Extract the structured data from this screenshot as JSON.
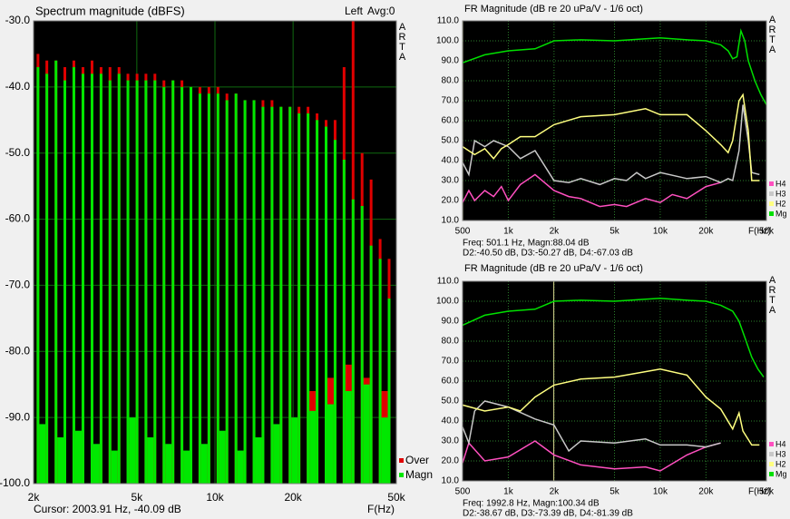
{
  "chart_data": [
    {
      "type": "bar",
      "title": "Spectrum magnitude (dBFS)",
      "channel": "Left",
      "average": "Avg:0",
      "brand": "ARTA",
      "x_label": "F(Hz)",
      "status": [
        "Cursor: 2003.91 Hz, -40.09 dB"
      ],
      "xscale": "log",
      "grid": true,
      "xlim": [
        2000,
        50000
      ],
      "xticks": [
        {
          "value": 2000,
          "label": "2k"
        },
        {
          "value": 5000,
          "label": "5k"
        },
        {
          "value": 10000,
          "label": "10k"
        },
        {
          "value": 20000,
          "label": "20k"
        },
        {
          "value": 50000,
          "label": "50k"
        }
      ],
      "ylim": [
        -100,
        -30
      ],
      "yticks": [
        {
          "value": -100,
          "label": "-100.0"
        },
        {
          "value": -90,
          "label": "-90.0"
        },
        {
          "value": -80,
          "label": "-80.0"
        },
        {
          "value": -70,
          "label": "-70.0"
        },
        {
          "value": -60,
          "label": "-60.0"
        },
        {
          "value": -50,
          "label": "-50.0"
        },
        {
          "value": -40,
          "label": "-40.0"
        },
        {
          "value": -30,
          "label": "-30.0"
        }
      ],
      "series": [
        {
          "name": "Over",
          "color": "#e00000",
          "x": [
            2080,
            2250,
            2440,
            2640,
            2860,
            3100,
            3360,
            3640,
            3940,
            4270,
            4620,
            5010,
            5420,
            5870,
            6360,
            6890,
            7460,
            8080,
            8750,
            9480,
            10270,
            11120,
            12050,
            13050,
            14140,
            15310,
            16590,
            17970,
            19460,
            21080,
            22840,
            24740,
            26800,
            29030,
            31440,
            34060,
            36890,
            39960,
            43290,
            46890
          ],
          "values": [
            -35,
            -36,
            -36,
            -37,
            -36,
            -37,
            -36,
            -37,
            -37,
            -37,
            -38,
            -38,
            -38,
            -38,
            -39,
            -39,
            -39,
            -40,
            -40,
            -40,
            -40,
            -41,
            -41,
            -42,
            -42,
            -42,
            -42,
            -43,
            -43,
            -43,
            -43,
            -44,
            -45,
            -45,
            -37,
            -30,
            -50,
            -54,
            -63,
            -66
          ],
          "noise_x": [
            2160,
            2540,
            2980,
            3500,
            4110,
            4830,
            5650,
            6630,
            7770,
            9110,
            10680,
            12530,
            14700,
            17240,
            20220,
            23720,
            27820,
            32630,
            38280,
            44900
          ],
          "noise_values": [
            -95,
            -96,
            -95,
            -96,
            -97,
            -94,
            -96,
            -96,
            -97,
            -96,
            -94,
            -96,
            -95,
            -93,
            -91,
            -86,
            -84,
            -82,
            -84,
            -86
          ]
        },
        {
          "name": "Magn",
          "color": "#00e800",
          "x": [
            2080,
            2250,
            2440,
            2640,
            2860,
            3100,
            3360,
            3640,
            3940,
            4270,
            4620,
            5010,
            5420,
            5870,
            6360,
            6890,
            7460,
            8080,
            8750,
            9480,
            10270,
            11120,
            12050,
            13050,
            14140,
            15310,
            16590,
            17970,
            19460,
            21080,
            22840,
            24740,
            26800,
            29030,
            31440,
            34060,
            36890,
            39960,
            43290,
            46890
          ],
          "values": [
            -37,
            -38,
            -36,
            -39,
            -37,
            -38,
            -38,
            -38,
            -39,
            -38,
            -39,
            -39,
            -39,
            -39,
            -40,
            -39,
            -40,
            -40,
            -41,
            -41,
            -41,
            -42,
            -41,
            -42,
            -42,
            -43,
            -43,
            -43,
            -43,
            -44,
            -44,
            -45,
            -46,
            -48,
            -51,
            -57,
            -58,
            -64,
            -66,
            -72
          ],
          "noise_x": [
            2160,
            2540,
            2980,
            3500,
            4110,
            4830,
            5650,
            6630,
            7770,
            9110,
            10680,
            12530,
            14700,
            17240,
            20220,
            23720,
            27820,
            32630,
            38280,
            44900
          ],
          "noise_values": [
            -91,
            -93,
            -92,
            -94,
            -95,
            -90,
            -93,
            -94,
            -95,
            -94,
            -92,
            -95,
            -93,
            -91,
            -90,
            -89,
            -88,
            -86,
            -85,
            -90
          ]
        }
      ]
    },
    {
      "type": "line",
      "title": "FR Magnitude (dB re 20 uPa/V - 1/6 oct)",
      "brand": "ARTA",
      "x_label": "F(Hz)",
      "status": [
        "Freq: 501.1 Hz, Magn:88.04 dB",
        "D2:-40.50 dB, D3:-50.27 dB, D4:-67.03 dB"
      ],
      "cursor_freq": 501.1,
      "xscale": "log",
      "grid": true,
      "xlim": [
        500,
        50000
      ],
      "xticks": [
        500,
        {
          "value": 1000,
          "label": "1k"
        },
        {
          "value": 2000,
          "label": "2k"
        },
        {
          "value": 5000,
          "label": "5k"
        },
        {
          "value": 10000,
          "label": "10k"
        },
        {
          "value": 20000,
          "label": "20k"
        },
        {
          "value": 50000,
          "label": "50k"
        }
      ],
      "ylim": [
        10,
        110
      ],
      "yticks": [
        {
          "value": 10,
          "label": "10.0"
        },
        {
          "value": 20,
          "label": "20.0"
        },
        {
          "value": 30,
          "label": "30.0"
        },
        {
          "value": 40,
          "label": "40.0"
        },
        {
          "value": 50,
          "label": "50.0"
        },
        {
          "value": 60,
          "label": "60.0"
        },
        {
          "value": 70,
          "label": "70.0"
        },
        {
          "value": 80,
          "label": "80.0"
        },
        {
          "value": 90,
          "label": "90.0"
        },
        {
          "value": 100,
          "label": "100.0"
        },
        {
          "value": 110,
          "label": "110.0"
        }
      ],
      "series": [
        {
          "name": "H4",
          "color": "#ff50c0",
          "x": [
            500,
            550,
            600,
            700,
            800,
            900,
            1000,
            1200,
            1500,
            2000,
            2500,
            3000,
            4000,
            5000,
            6000,
            8000,
            10000,
            12000,
            15000,
            20000,
            25000
          ],
          "values": [
            19,
            25,
            20,
            25,
            22,
            27,
            20,
            28,
            33,
            25,
            22,
            21,
            17,
            18,
            17,
            21,
            19,
            23,
            21,
            27,
            29
          ]
        },
        {
          "name": "H3",
          "color": "#c8c8c8",
          "x": [
            500,
            550,
            600,
            700,
            800,
            1000,
            1200,
            1500,
            2000,
            2500,
            3000,
            4000,
            5000,
            6000,
            7000,
            8000,
            10000,
            15000,
            20000,
            25000,
            28000,
            30000,
            33000,
            35000,
            38000,
            40000,
            45000
          ],
          "values": [
            39,
            33,
            50,
            47,
            50,
            47,
            41,
            45,
            30,
            29,
            31,
            28,
            31,
            30,
            34,
            31,
            34,
            31,
            32,
            29,
            31,
            30,
            45,
            68,
            50,
            34,
            33
          ]
        },
        {
          "name": "H2",
          "color": "#ffff80",
          "x": [
            500,
            600,
            700,
            800,
            900,
            1000,
            1200,
            1500,
            2000,
            3000,
            5000,
            8000,
            10000,
            15000,
            20000,
            25000,
            28000,
            30000,
            33000,
            35000,
            38000,
            40000,
            45000
          ],
          "values": [
            47,
            43,
            46,
            41,
            46,
            48,
            52,
            52,
            58,
            62,
            63,
            66,
            63,
            63,
            55,
            48,
            44,
            50,
            70,
            73,
            55,
            30,
            30
          ]
        },
        {
          "name": "Mg",
          "color": "#00e000",
          "x": [
            500,
            700,
            1000,
            1500,
            2000,
            3000,
            5000,
            8000,
            10000,
            15000,
            20000,
            25000,
            28000,
            30000,
            32000,
            34000,
            36000,
            38000,
            42000,
            46000,
            50000
          ],
          "values": [
            89,
            93,
            95,
            96,
            100,
            100.5,
            100,
            101,
            101.5,
            100.5,
            100,
            98,
            95,
            91,
            92,
            105,
            100,
            90,
            80,
            73,
            68
          ]
        }
      ]
    },
    {
      "type": "line",
      "title": "FR Magnitude (dB re 20 uPa/V - 1/6 oct)",
      "brand": "ARTA",
      "x_label": "F(Hz)",
      "status": [
        "Freq: 1992.8 Hz, Magn:100.34 dB",
        "D2:-38.67 dB, D3:-73.39 dB, D4:-81.39 dB"
      ],
      "cursor_freq": 1992.8,
      "xscale": "log",
      "grid": true,
      "xlim": [
        500,
        50000
      ],
      "xticks": [
        500,
        {
          "value": 1000,
          "label": "1k"
        },
        {
          "value": 2000,
          "label": "2k"
        },
        {
          "value": 5000,
          "label": "5k"
        },
        {
          "value": 10000,
          "label": "10k"
        },
        {
          "value": 20000,
          "label": "20k"
        },
        {
          "value": 50000,
          "label": "50k"
        }
      ],
      "ylim": [
        10,
        110
      ],
      "yticks": [
        {
          "value": 10,
          "label": "10.0"
        },
        {
          "value": 20,
          "label": "20.0"
        },
        {
          "value": 30,
          "label": "30.0"
        },
        {
          "value": 40,
          "label": "40.0"
        },
        {
          "value": 50,
          "label": "50.0"
        },
        {
          "value": 60,
          "label": "60.0"
        },
        {
          "value": 70,
          "label": "70.0"
        },
        {
          "value": 80,
          "label": "80.0"
        },
        {
          "value": 90,
          "label": "90.0"
        },
        {
          "value": 100,
          "label": "100.0"
        },
        {
          "value": 110,
          "label": "110.0"
        }
      ],
      "series": [
        {
          "name": "H4",
          "color": "#ff50c0",
          "x": [
            500,
            550,
            700,
            1000,
            1500,
            2000,
            3000,
            5000,
            8000,
            10000,
            15000,
            20000,
            25000
          ],
          "values": [
            19,
            29,
            20,
            22,
            30,
            23,
            18,
            16,
            17,
            15,
            23,
            27,
            29
          ]
        },
        {
          "name": "H3",
          "color": "#c8c8c8",
          "x": [
            500,
            550,
            600,
            700,
            1000,
            1500,
            2000,
            2500,
            3000,
            5000,
            8000,
            10000,
            15000,
            20000,
            25000
          ],
          "values": [
            37,
            29,
            45,
            50,
            47,
            41,
            38,
            25,
            30,
            29,
            31,
            28,
            28,
            27,
            29
          ]
        },
        {
          "name": "H2",
          "color": "#ffff80",
          "x": [
            500,
            700,
            1000,
            1200,
            1500,
            2000,
            3000,
            5000,
            10000,
            15000,
            20000,
            25000,
            30000,
            33000,
            35000,
            40000,
            45000
          ],
          "values": [
            48,
            45,
            47,
            45,
            52,
            58,
            61,
            62,
            66,
            63,
            52,
            46,
            36,
            44,
            35,
            28,
            28
          ]
        },
        {
          "name": "Mg",
          "color": "#00e000",
          "x": [
            500,
            700,
            1000,
            1500,
            2000,
            3000,
            5000,
            8000,
            10000,
            15000,
            20000,
            25000,
            30000,
            33000,
            36000,
            40000,
            44000,
            48000
          ],
          "values": [
            88,
            93,
            95,
            96,
            100,
            100.5,
            100,
            101,
            101.5,
            100.5,
            100,
            98,
            95,
            90,
            82,
            72,
            66,
            62
          ]
        }
      ]
    }
  ]
}
